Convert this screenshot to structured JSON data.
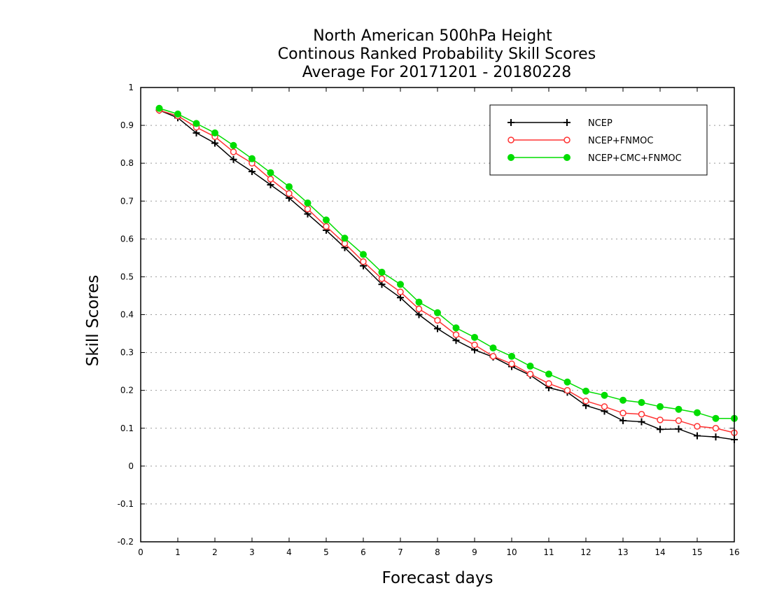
{
  "chart_data": {
    "type": "line",
    "title": [
      "North American 500hPa Height",
      "Continous Ranked Probability Skill Scores",
      "Average For 20171201 - 20180228"
    ],
    "xlabel": "Forecast days",
    "ylabel": "Skill Scores",
    "xlim": [
      0,
      16
    ],
    "ylim": [
      -0.2,
      1
    ],
    "x_ticks": [
      "0",
      "1",
      "2",
      "3",
      "4",
      "5",
      "6",
      "7",
      "8",
      "9",
      "10",
      "11",
      "12",
      "13",
      "14",
      "15",
      "16"
    ],
    "y_ticks": [
      "1",
      "0.9",
      "0.8",
      "0.7",
      "0.6",
      "0.5",
      "0.4",
      "0.3",
      "0.2",
      "0.1",
      "0",
      "-0.1",
      "-0.2"
    ],
    "grid": "horizontal dotted",
    "legend_position": "top-right",
    "x": [
      0.5,
      1,
      1.5,
      2,
      2.5,
      3,
      3.5,
      4,
      4.5,
      5,
      5.5,
      6,
      6.5,
      7,
      7.5,
      8,
      8.5,
      9,
      9.5,
      10,
      10.5,
      11,
      11.5,
      12,
      12.5,
      13,
      13.5,
      14,
      14.5,
      15,
      15.5,
      16
    ],
    "series": [
      {
        "name": "NCEP",
        "color": "#000000",
        "marker": "plus",
        "values": [
          0.94,
          0.92,
          0.88,
          0.853,
          0.81,
          0.778,
          0.743,
          0.708,
          0.666,
          0.623,
          0.577,
          0.529,
          0.48,
          0.445,
          0.4,
          0.363,
          0.332,
          0.307,
          0.288,
          0.263,
          0.24,
          0.207,
          0.195,
          0.16,
          0.145,
          0.12,
          0.117,
          0.097,
          0.098,
          0.08,
          0.077,
          0.07
        ]
      },
      {
        "name": "NCEP+FNMOC",
        "color": "#ff3333",
        "marker": "open-circle",
        "values": [
          0.94,
          0.925,
          0.895,
          0.87,
          0.83,
          0.8,
          0.758,
          0.72,
          0.679,
          0.633,
          0.588,
          0.54,
          0.495,
          0.46,
          0.415,
          0.385,
          0.347,
          0.32,
          0.29,
          0.27,
          0.243,
          0.218,
          0.2,
          0.172,
          0.157,
          0.14,
          0.137,
          0.122,
          0.12,
          0.105,
          0.1,
          0.088
        ]
      },
      {
        "name": "NCEP+CMC+FNMOC",
        "color": "#00dd00",
        "marker": "filled-circle",
        "values": [
          0.945,
          0.93,
          0.905,
          0.88,
          0.847,
          0.812,
          0.775,
          0.738,
          0.695,
          0.65,
          0.602,
          0.559,
          0.512,
          0.48,
          0.433,
          0.405,
          0.365,
          0.34,
          0.312,
          0.29,
          0.264,
          0.243,
          0.222,
          0.198,
          0.187,
          0.174,
          0.168,
          0.157,
          0.15,
          0.141,
          0.126,
          0.126
        ]
      }
    ]
  }
}
